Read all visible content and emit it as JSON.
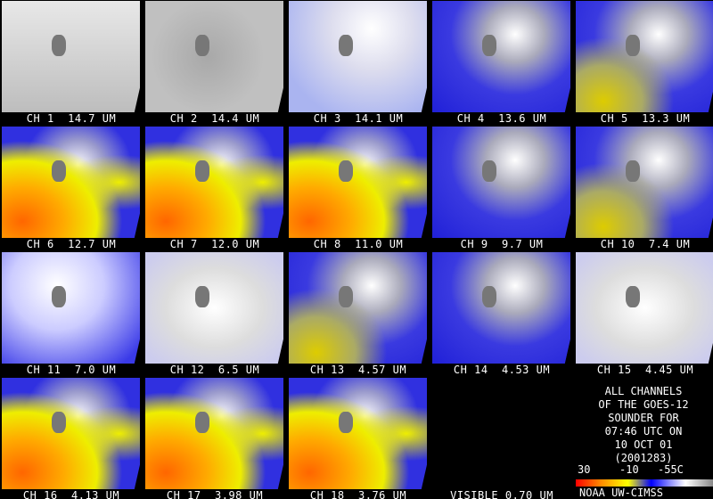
{
  "panels": [
    {
      "label": "CH 1  14.7 UM"
    },
    {
      "label": "CH 2  14.4 UM"
    },
    {
      "label": "CH 3  14.1 UM"
    },
    {
      "label": "CH 4  13.6 UM"
    },
    {
      "label": "CH 5  13.3 UM"
    },
    {
      "label": "CH 6  12.7 UM"
    },
    {
      "label": "CH 7  12.0 UM"
    },
    {
      "label": "CH 8  11.0 UM"
    },
    {
      "label": "CH 9  9.7 UM"
    },
    {
      "label": "CH 10  7.4 UM"
    },
    {
      "label": "CH 11  7.0 UM"
    },
    {
      "label": "CH 12  6.5 UM"
    },
    {
      "label": "CH 13  4.57 UM"
    },
    {
      "label": "CH 14  4.53 UM"
    },
    {
      "label": "CH 15  4.45 UM"
    },
    {
      "label": "CH 16  4.13 UM"
    },
    {
      "label": "CH 17  3.98 UM"
    },
    {
      "label": "CH 18  3.76 UM"
    },
    {
      "label": "VISIBLE 0.70 UM"
    }
  ],
  "info": {
    "lines": [
      "ALL CHANNELS",
      "OF THE GOES-12",
      "SOUNDER FOR",
      "07:46 UTC ON",
      "10 OCT 01",
      "(2001283)"
    ],
    "scale_labels": [
      "30",
      "-10",
      "-55C"
    ],
    "credit": "NOAA UW-CIMSS"
  }
}
